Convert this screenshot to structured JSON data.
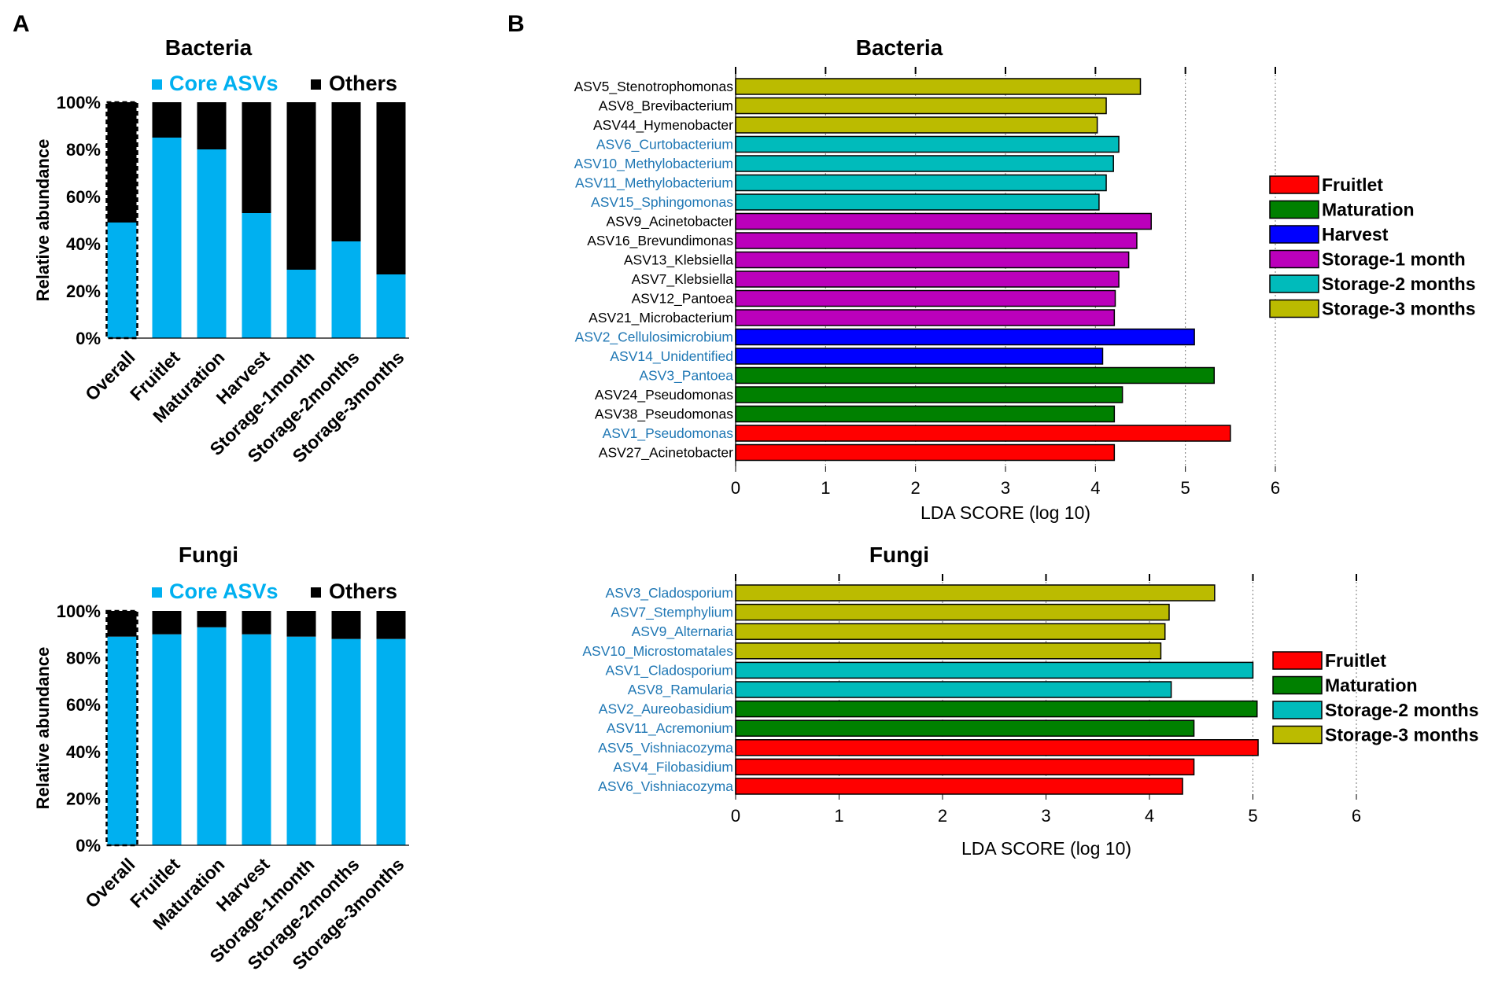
{
  "panel_labels": {
    "a": "A",
    "b": "B"
  },
  "colors": {
    "core": "#00B0F0",
    "others": "#000000",
    "highlight_text": "#1F77B4",
    "Fruitlet": "#FF0000",
    "Maturation": "#008000",
    "Harvest": "#0000FF",
    "Storage-1 month": "#BB00BB",
    "Storage-2 months": "#00BBBB",
    "Storage-3 months": "#BBBB00"
  },
  "chart_data": [
    {
      "id": "bacteria_stack",
      "type": "bar",
      "stacked": true,
      "title": "Bacteria",
      "legend": [
        "Core ASVs",
        "Others"
      ],
      "ylabel": "Relative abundance",
      "yticks": [
        "0%",
        "20%",
        "40%",
        "60%",
        "80%",
        "100%"
      ],
      "ylim": [
        0,
        100
      ],
      "categories": [
        "Overall",
        "Fruitlet",
        "Maturation",
        "Harvest",
        "Storage-1month",
        "Storage-2months",
        "Storage-3months"
      ],
      "series": [
        {
          "name": "Core ASVs",
          "values": [
            49,
            85,
            80,
            53,
            29,
            41,
            27
          ]
        },
        {
          "name": "Others",
          "values": [
            51,
            15,
            20,
            47,
            71,
            59,
            73
          ]
        }
      ]
    },
    {
      "id": "fungi_stack",
      "type": "bar",
      "stacked": true,
      "title": "Fungi",
      "legend": [
        "Core ASVs",
        "Others"
      ],
      "ylabel": "Relative abundance",
      "yticks": [
        "0%",
        "20%",
        "40%",
        "60%",
        "80%",
        "100%"
      ],
      "ylim": [
        0,
        100
      ],
      "categories": [
        "Overall",
        "Fruitlet",
        "Maturation",
        "Harvest",
        "Storage-1month",
        "Storage-2months",
        "Storage-3months"
      ],
      "series": [
        {
          "name": "Core ASVs",
          "values": [
            89,
            90,
            93,
            90,
            89,
            88,
            88
          ]
        },
        {
          "name": "Others",
          "values": [
            11,
            10,
            7,
            10,
            11,
            12,
            12
          ]
        }
      ]
    },
    {
      "id": "bacteria_lda",
      "type": "bar",
      "orientation": "horizontal",
      "title": "Bacteria",
      "xlabel": "LDA SCORE (log 10)",
      "xlim": [
        0,
        6
      ],
      "xticks": [
        0,
        1,
        2,
        3,
        4,
        5,
        6
      ],
      "legend": [
        "Fruitlet",
        "Maturation",
        "Harvest",
        "Storage-1 month",
        "Storage-2 months",
        "Storage-3 months"
      ],
      "bars": [
        {
          "label": "ASV5_Stenotrophomonas",
          "value": 4.5,
          "group": "Storage-3 months",
          "highlight": false
        },
        {
          "label": "ASV8_Brevibacterium",
          "value": 4.12,
          "group": "Storage-3 months",
          "highlight": false
        },
        {
          "label": "ASV44_Hymenobacter",
          "value": 4.02,
          "group": "Storage-3 months",
          "highlight": false
        },
        {
          "label": "ASV6_Curtobacterium",
          "value": 4.26,
          "group": "Storage-2 months",
          "highlight": true
        },
        {
          "label": "ASV10_Methylobacterium",
          "value": 4.2,
          "group": "Storage-2 months",
          "highlight": true
        },
        {
          "label": "ASV11_Methylobacterium",
          "value": 4.12,
          "group": "Storage-2 months",
          "highlight": true
        },
        {
          "label": "ASV15_Sphingomonas",
          "value": 4.04,
          "group": "Storage-2 months",
          "highlight": true
        },
        {
          "label": "ASV9_Acinetobacter",
          "value": 4.62,
          "group": "Storage-1 month",
          "highlight": false
        },
        {
          "label": "ASV16_Brevundimonas",
          "value": 4.46,
          "group": "Storage-1 month",
          "highlight": false
        },
        {
          "label": "ASV13_Klebsiella",
          "value": 4.37,
          "group": "Storage-1 month",
          "highlight": false
        },
        {
          "label": "ASV7_Klebsiella",
          "value": 4.26,
          "group": "Storage-1 month",
          "highlight": false
        },
        {
          "label": "ASV12_Pantoea",
          "value": 4.22,
          "group": "Storage-1 month",
          "highlight": false
        },
        {
          "label": "ASV21_Microbacterium",
          "value": 4.21,
          "group": "Storage-1 month",
          "highlight": false
        },
        {
          "label": "ASV2_Cellulosimicrobium",
          "value": 5.1,
          "group": "Harvest",
          "highlight": true
        },
        {
          "label": "ASV14_Unidentified",
          "value": 4.08,
          "group": "Harvest",
          "highlight": true
        },
        {
          "label": "ASV3_Pantoea",
          "value": 5.32,
          "group": "Maturation",
          "highlight": true
        },
        {
          "label": "ASV24_Pseudomonas",
          "value": 4.3,
          "group": "Maturation",
          "highlight": false
        },
        {
          "label": "ASV38_Pseudomonas",
          "value": 4.21,
          "group": "Maturation",
          "highlight": false
        },
        {
          "label": "ASV1_Pseudomonas",
          "value": 5.5,
          "group": "Fruitlet",
          "highlight": true
        },
        {
          "label": "ASV27_Acinetobacter",
          "value": 4.21,
          "group": "Fruitlet",
          "highlight": false
        }
      ]
    },
    {
      "id": "fungi_lda",
      "type": "bar",
      "orientation": "horizontal",
      "title": "Fungi",
      "xlabel": "LDA SCORE (log 10)",
      "xlim": [
        0,
        6
      ],
      "xticks": [
        0,
        1,
        2,
        3,
        4,
        5,
        6
      ],
      "legend": [
        "Fruitlet",
        "Maturation",
        "Storage-2 months",
        "Storage-3 months"
      ],
      "bars": [
        {
          "label": "ASV3_Cladosporium",
          "value": 4.63,
          "group": "Storage-3 months",
          "highlight": true
        },
        {
          "label": "ASV7_Stemphylium",
          "value": 4.19,
          "group": "Storage-3 months",
          "highlight": true
        },
        {
          "label": "ASV9_Alternaria",
          "value": 4.15,
          "group": "Storage-3 months",
          "highlight": true
        },
        {
          "label": "ASV10_Microstomatales",
          "value": 4.11,
          "group": "Storage-3 months",
          "highlight": true
        },
        {
          "label": "ASV1_Cladosporium",
          "value": 5.0,
          "group": "Storage-2 months",
          "highlight": true
        },
        {
          "label": "ASV8_Ramularia",
          "value": 4.21,
          "group": "Storage-2 months",
          "highlight": true
        },
        {
          "label": "ASV2_Aureobasidium",
          "value": 5.04,
          "group": "Maturation",
          "highlight": true
        },
        {
          "label": "ASV11_Acremonium",
          "value": 4.43,
          "group": "Maturation",
          "highlight": true
        },
        {
          "label": "ASV5_Vishniacozyma",
          "value": 5.05,
          "group": "Fruitlet",
          "highlight": true
        },
        {
          "label": "ASV4_Filobasidium",
          "value": 4.43,
          "group": "Fruitlet",
          "highlight": true
        },
        {
          "label": "ASV6_Vishniacozyma",
          "value": 4.32,
          "group": "Fruitlet",
          "highlight": true
        }
      ]
    }
  ]
}
